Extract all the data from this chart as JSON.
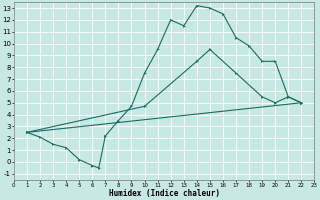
{
  "xlabel": "Humidex (Indice chaleur)",
  "bg_color": "#c8e8e4",
  "grid_color": "#ffffff",
  "line_color": "#1a6b60",
  "xlim": [
    0,
    23
  ],
  "ylim": [
    -1.5,
    13.5
  ],
  "xticks": [
    0,
    1,
    2,
    3,
    4,
    5,
    6,
    7,
    8,
    9,
    10,
    11,
    12,
    13,
    14,
    15,
    16,
    17,
    18,
    19,
    20,
    21,
    22,
    23
  ],
  "yticks": [
    -1,
    0,
    1,
    2,
    3,
    4,
    5,
    6,
    7,
    8,
    9,
    10,
    11,
    12,
    13
  ],
  "curve1_x": [
    1,
    2,
    3,
    4,
    5,
    6,
    6.5,
    7,
    8,
    9,
    10,
    11,
    12,
    13,
    14,
    15,
    16,
    17,
    18,
    19,
    20,
    21,
    22
  ],
  "curve1_y": [
    2.5,
    2.1,
    1.5,
    1.2,
    0.2,
    -0.3,
    -0.5,
    2.2,
    3.5,
    4.7,
    7.5,
    9.5,
    12.0,
    11.5,
    13.2,
    13.0,
    12.5,
    10.5,
    9.8,
    8.5,
    8.5,
    5.5,
    5.0
  ],
  "curve2_x": [
    1,
    10,
    14,
    15,
    17,
    19,
    20,
    21,
    22
  ],
  "curve2_y": [
    2.5,
    4.7,
    8.5,
    9.5,
    7.5,
    5.5,
    5.0,
    5.5,
    5.0
  ],
  "curve3_x": [
    1,
    22
  ],
  "curve3_y": [
    2.5,
    5.0
  ]
}
